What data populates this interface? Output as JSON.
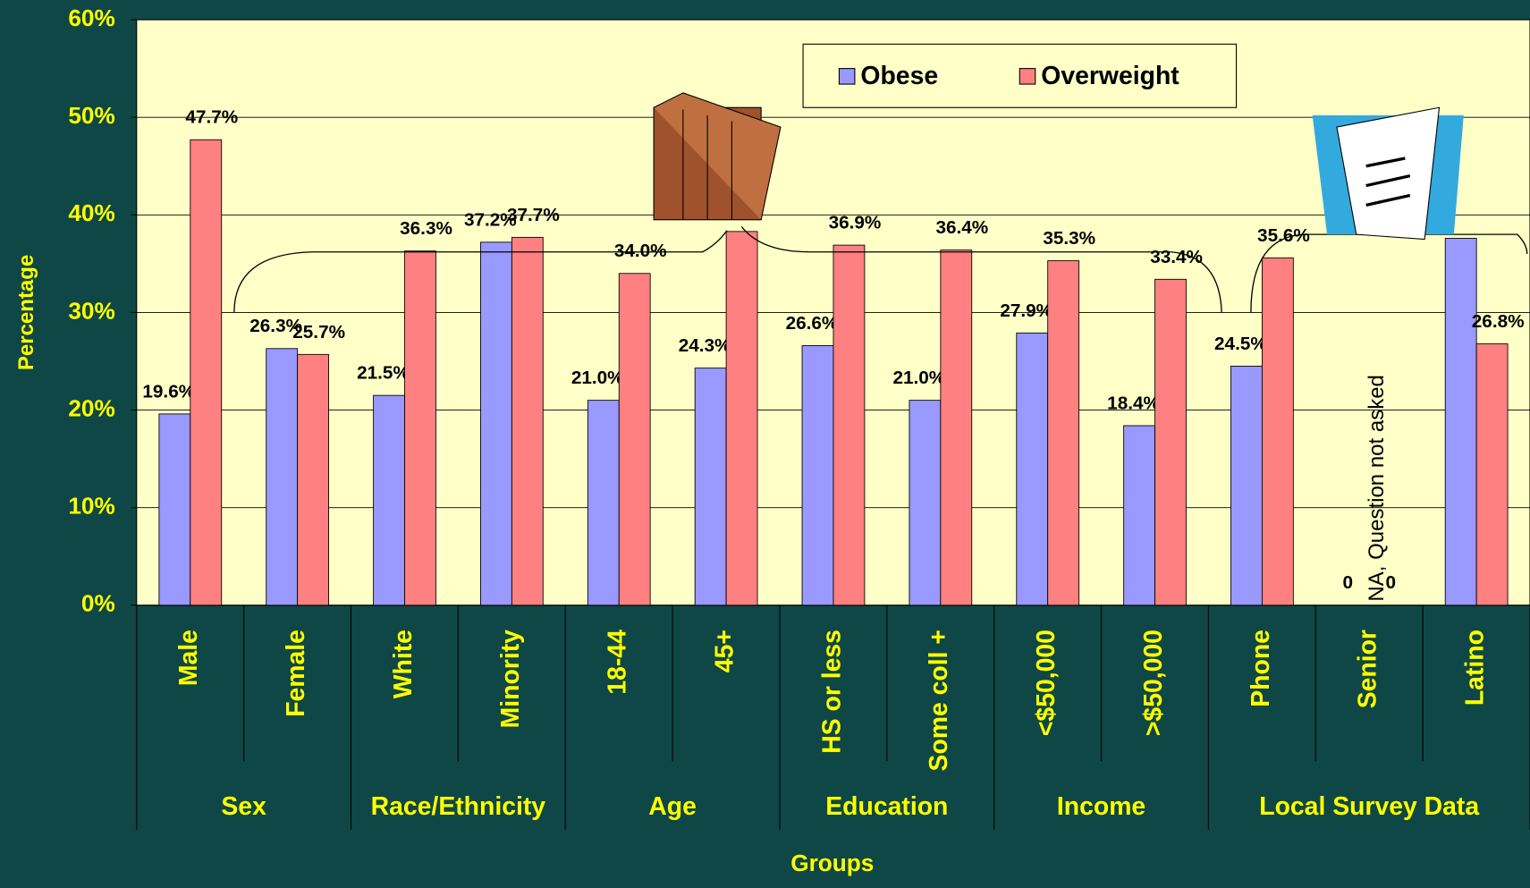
{
  "chart_data": {
    "type": "bar",
    "categories": [
      "Male",
      "Female",
      "White",
      "Minority",
      "18-44",
      "45+",
      "HS or less",
      "Some coll +",
      "<$50,000",
      ">$50,000",
      "Phone",
      "Senior",
      "Latino"
    ],
    "groups": [
      {
        "label": "Sex",
        "span": 2
      },
      {
        "label": "Race/Ethnicity",
        "span": 2
      },
      {
        "label": "Age",
        "span": 2
      },
      {
        "label": "Education",
        "span": 2
      },
      {
        "label": "Income",
        "span": 2
      },
      {
        "label": "Local Survey Data",
        "span": 3
      }
    ],
    "series": [
      {
        "name": "Obese",
        "color": "#9999ff",
        "values": [
          19.6,
          26.3,
          21.5,
          37.2,
          21.0,
          24.3,
          26.6,
          21.0,
          27.9,
          18.4,
          24.5,
          0,
          37.6
        ],
        "value_labels": [
          "19.6%",
          "26.3%",
          "21.5%",
          "37.2%",
          "21.0%",
          "24.3%",
          "26.6%",
          "21.0%",
          "27.9%",
          "18.4%",
          "24.5%",
          "0",
          null
        ]
      },
      {
        "name": "Overweight",
        "color": "#ff8080",
        "values": [
          47.7,
          25.7,
          36.3,
          37.7,
          34.0,
          38.3,
          36.9,
          36.4,
          35.3,
          33.4,
          35.6,
          0,
          26.8
        ],
        "value_labels": [
          "47.7%",
          "25.7%",
          "36.3%",
          "37.7%",
          "34.0%",
          null,
          "36.9%",
          "36.4%",
          "35.3%",
          "33.4%",
          "35.6%",
          "0",
          "26.8%"
        ]
      }
    ],
    "ylim": [
      0,
      60
    ],
    "yticks": [
      {
        "value": 0,
        "label": "0%"
      },
      {
        "value": 10,
        "label": "10%"
      },
      {
        "value": 20,
        "label": "20%"
      },
      {
        "value": 30,
        "label": "30%"
      },
      {
        "value": 40,
        "label": "40%"
      },
      {
        "value": 50,
        "label": "50%"
      },
      {
        "value": 60,
        "label": "60%"
      }
    ],
    "y_label": "Percentage",
    "x_label": "Groups",
    "annotation": "NA, Question not asked",
    "grid": true,
    "legend": "top-right"
  }
}
